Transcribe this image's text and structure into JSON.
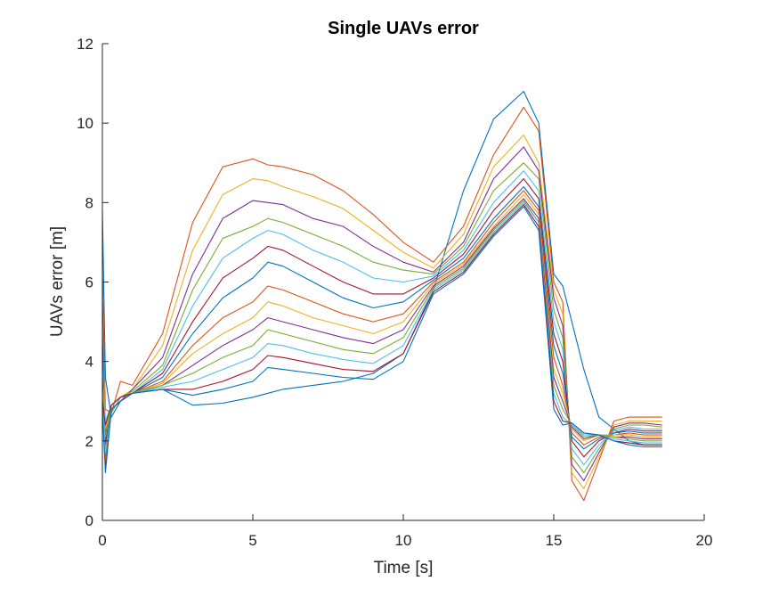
{
  "chart_data": {
    "type": "line",
    "title": "Single UAVs error",
    "xlabel": "Time [s]",
    "ylabel": "UAVs error [m]",
    "xlim": [
      0,
      20
    ],
    "ylim": [
      0,
      12
    ],
    "xticks": [
      0,
      5,
      10,
      15,
      20
    ],
    "yticks": [
      0,
      2,
      4,
      6,
      8,
      10,
      12
    ],
    "grid": false,
    "legend": "none",
    "colors": [
      "#0072BD",
      "#D95319",
      "#EDB120",
      "#7E2F8E",
      "#77AC30",
      "#4DBEEE",
      "#A2142F"
    ],
    "series": [
      {
        "x": [
          0,
          0.1,
          0.3,
          0.6,
          1,
          2,
          3,
          4,
          5,
          5.5,
          6,
          7,
          8,
          9,
          10,
          11,
          12,
          13,
          14,
          14.5,
          15,
          15.3,
          15.6,
          16,
          16.5,
          17,
          17.5,
          18,
          18.6
        ],
        "y": [
          7.8,
          3.6,
          2.6,
          3.0,
          3.2,
          3.3,
          2.9,
          2.95,
          3.1,
          3.2,
          3.3,
          3.4,
          3.5,
          3.7,
          4.2,
          5.8,
          8.3,
          10.1,
          10.8,
          10.0,
          6.2,
          5.9,
          5.0,
          3.8,
          2.6,
          2.3,
          2.0,
          1.9,
          1.9
        ]
      },
      {
        "x": [
          0,
          0.1,
          0.3,
          0.6,
          1,
          2,
          3,
          4,
          5,
          5.5,
          6,
          7,
          8,
          9,
          10,
          11,
          12,
          13,
          14,
          14.5,
          15,
          15.3,
          15.6,
          16,
          16.5,
          17,
          17.5,
          18,
          18.6
        ],
        "y": [
          6.2,
          2.8,
          2.7,
          3.5,
          3.4,
          4.7,
          7.5,
          8.9,
          9.1,
          8.95,
          8.9,
          8.7,
          8.3,
          7.7,
          7.0,
          6.5,
          7.4,
          9.2,
          10.4,
          9.8,
          6.0,
          5.5,
          1.0,
          0.5,
          1.5,
          2.5,
          2.6,
          2.6,
          2.6
        ]
      },
      {
        "x": [
          0,
          0.1,
          0.3,
          0.6,
          1,
          2,
          3,
          4,
          5,
          5.5,
          6,
          7,
          8,
          9,
          10,
          11,
          12,
          13,
          14,
          14.5,
          15,
          15.3,
          15.6,
          16,
          16.5,
          17,
          17.5,
          18,
          18.6
        ],
        "y": [
          5.8,
          1.8,
          2.9,
          3.1,
          3.3,
          4.4,
          6.8,
          8.2,
          8.6,
          8.55,
          8.4,
          8.15,
          7.85,
          7.3,
          6.75,
          6.35,
          7.2,
          8.9,
          9.7,
          9.0,
          5.8,
          5.2,
          1.2,
          0.8,
          1.6,
          2.4,
          2.5,
          2.5,
          2.5
        ]
      },
      {
        "x": [
          0,
          0.1,
          0.3,
          0.6,
          1,
          2,
          3,
          4,
          5,
          5.5,
          6,
          7,
          8,
          9,
          10,
          11,
          12,
          13,
          14,
          14.5,
          15,
          15.3,
          15.6,
          16,
          16.5,
          17,
          17.5,
          18,
          18.6
        ],
        "y": [
          5.5,
          2.2,
          2.8,
          3.0,
          3.3,
          4.1,
          6.2,
          7.6,
          8.05,
          8.0,
          7.95,
          7.6,
          7.4,
          6.9,
          6.5,
          6.25,
          7.0,
          8.6,
          9.4,
          8.8,
          5.6,
          4.9,
          1.4,
          1.0,
          1.7,
          2.35,
          2.45,
          2.45,
          2.4
        ]
      },
      {
        "x": [
          0,
          0.1,
          0.3,
          0.6,
          1,
          2,
          3,
          4,
          5,
          5.5,
          6,
          7,
          8,
          9,
          10,
          11,
          12,
          13,
          14,
          14.5,
          15,
          15.3,
          15.6,
          16,
          16.5,
          17,
          17.5,
          18,
          18.6
        ],
        "y": [
          5.2,
          1.6,
          2.7,
          3.1,
          3.25,
          3.9,
          5.8,
          7.1,
          7.4,
          7.6,
          7.5,
          7.2,
          6.9,
          6.5,
          6.3,
          6.2,
          6.9,
          8.3,
          9.0,
          8.6,
          5.3,
          4.6,
          1.6,
          1.2,
          1.8,
          2.3,
          2.4,
          2.4,
          2.35
        ]
      },
      {
        "x": [
          0,
          0.1,
          0.3,
          0.6,
          1,
          2,
          3,
          4,
          5,
          5.5,
          6,
          7,
          8,
          9,
          10,
          11,
          12,
          13,
          14,
          14.5,
          15,
          15.3,
          15.6,
          16,
          16.5,
          17,
          17.5,
          18,
          18.6
        ],
        "y": [
          4.9,
          2.5,
          2.9,
          3.1,
          3.2,
          3.8,
          5.4,
          6.6,
          7.1,
          7.3,
          7.2,
          6.8,
          6.5,
          6.1,
          6.0,
          6.15,
          6.8,
          8.0,
          8.8,
          8.3,
          5.0,
          4.3,
          1.8,
          1.4,
          1.9,
          2.25,
          2.35,
          2.3,
          2.3
        ]
      },
      {
        "x": [
          0,
          0.1,
          0.3,
          0.6,
          1,
          2,
          3,
          4,
          5,
          5.5,
          6,
          7,
          8,
          9,
          10,
          11,
          12,
          13,
          14,
          14.5,
          15,
          15.3,
          15.6,
          16,
          16.5,
          17,
          17.5,
          18,
          18.6
        ],
        "y": [
          4.6,
          1.3,
          2.8,
          3.0,
          3.2,
          3.7,
          5.0,
          6.1,
          6.6,
          6.9,
          6.8,
          6.4,
          6.0,
          5.7,
          5.7,
          6.1,
          6.7,
          7.8,
          8.6,
          8.1,
          4.7,
          4.0,
          2.0,
          1.6,
          2.0,
          2.2,
          2.3,
          2.25,
          2.25
        ]
      },
      {
        "x": [
          0,
          0.1,
          0.3,
          0.6,
          1,
          2,
          3,
          4,
          5,
          5.5,
          6,
          7,
          8,
          9,
          10,
          11,
          12,
          13,
          14,
          14.5,
          15,
          15.3,
          15.6,
          16,
          16.5,
          17,
          17.5,
          18,
          18.6
        ],
        "y": [
          4.3,
          2.0,
          2.9,
          3.1,
          3.2,
          3.6,
          4.7,
          5.6,
          6.1,
          6.5,
          6.4,
          6.0,
          5.6,
          5.35,
          5.5,
          6.05,
          6.6,
          7.6,
          8.4,
          7.9,
          4.4,
          3.7,
          2.1,
          1.8,
          2.05,
          2.2,
          2.25,
          2.2,
          2.2
        ]
      },
      {
        "x": [
          0,
          0.1,
          0.3,
          0.6,
          1,
          2,
          3,
          4,
          5,
          5.5,
          6,
          7,
          8,
          9,
          10,
          11,
          12,
          13,
          14,
          14.5,
          15,
          15.3,
          15.6,
          16,
          16.5,
          17,
          17.5,
          18,
          18.6
        ],
        "y": [
          4.0,
          1.5,
          2.8,
          3.0,
          3.2,
          3.5,
          4.4,
          5.1,
          5.5,
          5.9,
          5.8,
          5.5,
          5.2,
          5.0,
          5.2,
          6.0,
          6.5,
          7.5,
          8.3,
          7.8,
          4.1,
          3.4,
          2.2,
          1.9,
          2.1,
          2.15,
          2.2,
          2.15,
          2.15
        ]
      },
      {
        "x": [
          0,
          0.1,
          0.3,
          0.6,
          1,
          2,
          3,
          4,
          5,
          5.5,
          6,
          7,
          8,
          9,
          10,
          11,
          12,
          13,
          14,
          14.5,
          15,
          15.3,
          15.6,
          16,
          16.5,
          17,
          17.5,
          18,
          18.6
        ],
        "y": [
          3.8,
          2.3,
          2.9,
          3.1,
          3.2,
          3.45,
          4.2,
          4.7,
          5.1,
          5.5,
          5.4,
          5.1,
          4.9,
          4.7,
          5.0,
          5.95,
          6.45,
          7.4,
          8.2,
          7.7,
          3.8,
          3.2,
          2.3,
          2.0,
          2.15,
          2.15,
          2.15,
          2.1,
          2.1
        ]
      },
      {
        "x": [
          0,
          0.1,
          0.3,
          0.6,
          1,
          2,
          3,
          4,
          5,
          5.5,
          6,
          7,
          8,
          9,
          10,
          11,
          12,
          13,
          14,
          14.5,
          15,
          15.3,
          15.6,
          16,
          16.5,
          17,
          17.5,
          18,
          18.6
        ],
        "y": [
          3.6,
          1.9,
          2.8,
          3.0,
          3.2,
          3.4,
          3.9,
          4.4,
          4.8,
          5.1,
          5.0,
          4.8,
          4.6,
          4.45,
          4.8,
          5.9,
          6.4,
          7.35,
          8.1,
          7.6,
          3.6,
          3.0,
          2.35,
          2.05,
          2.15,
          2.1,
          2.1,
          2.05,
          2.05
        ]
      },
      {
        "x": [
          0,
          0.1,
          0.3,
          0.6,
          1,
          2,
          3,
          4,
          5,
          5.5,
          6,
          7,
          8,
          9,
          10,
          11,
          12,
          13,
          14,
          14.5,
          15,
          15.3,
          15.6,
          16,
          16.5,
          17,
          17.5,
          18,
          18.6
        ],
        "y": [
          3.4,
          2.1,
          2.9,
          3.1,
          3.2,
          3.4,
          3.7,
          4.1,
          4.4,
          4.8,
          4.7,
          4.5,
          4.3,
          4.2,
          4.6,
          5.85,
          6.35,
          7.3,
          8.05,
          7.5,
          3.4,
          2.8,
          2.4,
          2.1,
          2.15,
          2.1,
          2.05,
          2.0,
          2.0
        ]
      },
      {
        "x": [
          0,
          0.1,
          0.3,
          0.6,
          1,
          2,
          3,
          4,
          5,
          5.5,
          6,
          7,
          8,
          9,
          10,
          11,
          12,
          13,
          14,
          14.5,
          15,
          15.3,
          15.6,
          16,
          16.5,
          17,
          17.5,
          18,
          18.6
        ],
        "y": [
          3.2,
          1.7,
          2.8,
          3.0,
          3.2,
          3.35,
          3.5,
          3.8,
          4.1,
          4.45,
          4.4,
          4.2,
          4.05,
          3.95,
          4.4,
          5.8,
          6.3,
          7.25,
          8.0,
          7.5,
          3.2,
          2.6,
          2.4,
          2.15,
          2.15,
          2.05,
          2.0,
          1.95,
          1.95
        ]
      },
      {
        "x": [
          0,
          0.1,
          0.3,
          0.6,
          1,
          2,
          3,
          4,
          5,
          5.5,
          6,
          7,
          8,
          9,
          10,
          11,
          12,
          13,
          14,
          14.5,
          15,
          15.3,
          15.6,
          16,
          16.5,
          17,
          17.5,
          18,
          18.6
        ],
        "y": [
          3.0,
          2.4,
          2.9,
          3.1,
          3.2,
          3.3,
          3.3,
          3.5,
          3.8,
          4.15,
          4.1,
          3.95,
          3.8,
          3.75,
          4.2,
          5.75,
          6.25,
          7.2,
          7.95,
          7.4,
          3.0,
          2.5,
          2.45,
          2.2,
          2.15,
          2.0,
          1.95,
          1.9,
          1.9
        ]
      },
      {
        "x": [
          0,
          0.1,
          0.3,
          0.6,
          1,
          2,
          3,
          4,
          5,
          5.5,
          6,
          7,
          8,
          9,
          10,
          11,
          12,
          13,
          14,
          14.5,
          15,
          15.3,
          15.6,
          16,
          16.5,
          17,
          17.5,
          18,
          18.6
        ],
        "y": [
          2.8,
          1.2,
          2.8,
          3.0,
          3.2,
          3.3,
          3.15,
          3.3,
          3.5,
          3.85,
          3.8,
          3.7,
          3.6,
          3.55,
          4.0,
          5.7,
          6.2,
          7.15,
          7.9,
          7.3,
          2.8,
          2.4,
          2.45,
          2.2,
          2.15,
          2.0,
          1.9,
          1.85,
          1.85
        ]
      }
    ]
  }
}
